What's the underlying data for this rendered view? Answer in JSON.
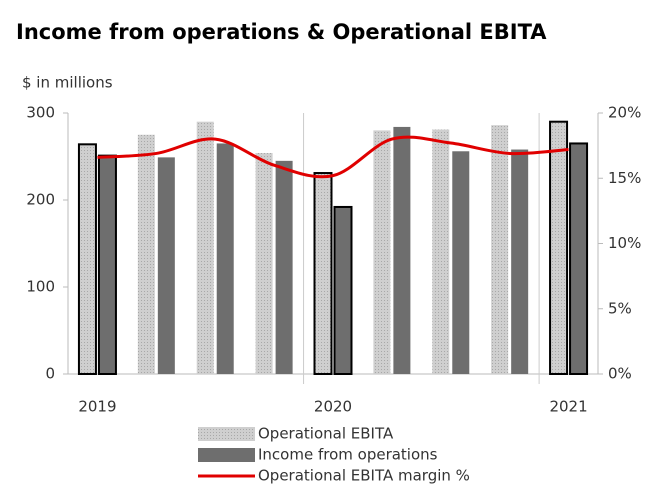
{
  "chart_data": {
    "type": "bar",
    "title": "Income from operations & Operational EBITA",
    "y_label": "$ in millions",
    "categories": [
      "2019",
      null,
      null,
      null,
      "2020",
      null,
      null,
      null,
      "2021"
    ],
    "series": [
      {
        "name": "Operational EBITA",
        "type": "bar",
        "color": "#c4c4c4",
        "values": [
          264,
          275,
          290,
          254,
          231,
          280,
          281,
          286,
          290
        ]
      },
      {
        "name": "Income from operations",
        "type": "bar",
        "color": "#6e6e6e",
        "values": [
          251,
          249,
          265,
          245,
          192,
          284,
          256,
          258,
          265
        ]
      },
      {
        "name": "Operational EBITA margin %",
        "type": "line",
        "axis": "y2",
        "color": "#e00000",
        "values": [
          16.6,
          16.9,
          18.0,
          16.0,
          15.2,
          18.0,
          17.7,
          16.9,
          17.2
        ]
      }
    ],
    "ylim": [
      0,
      300
    ],
    "yticks": [
      0,
      100,
      200,
      300
    ],
    "y2lim": [
      0,
      20
    ],
    "y2ticks": [
      {
        "value": 0,
        "label": "0%"
      },
      {
        "value": 5,
        "label": "5%"
      },
      {
        "value": 10,
        "label": "10%"
      },
      {
        "value": 15,
        "label": "15%"
      },
      {
        "value": 20,
        "label": "20%"
      }
    ]
  }
}
